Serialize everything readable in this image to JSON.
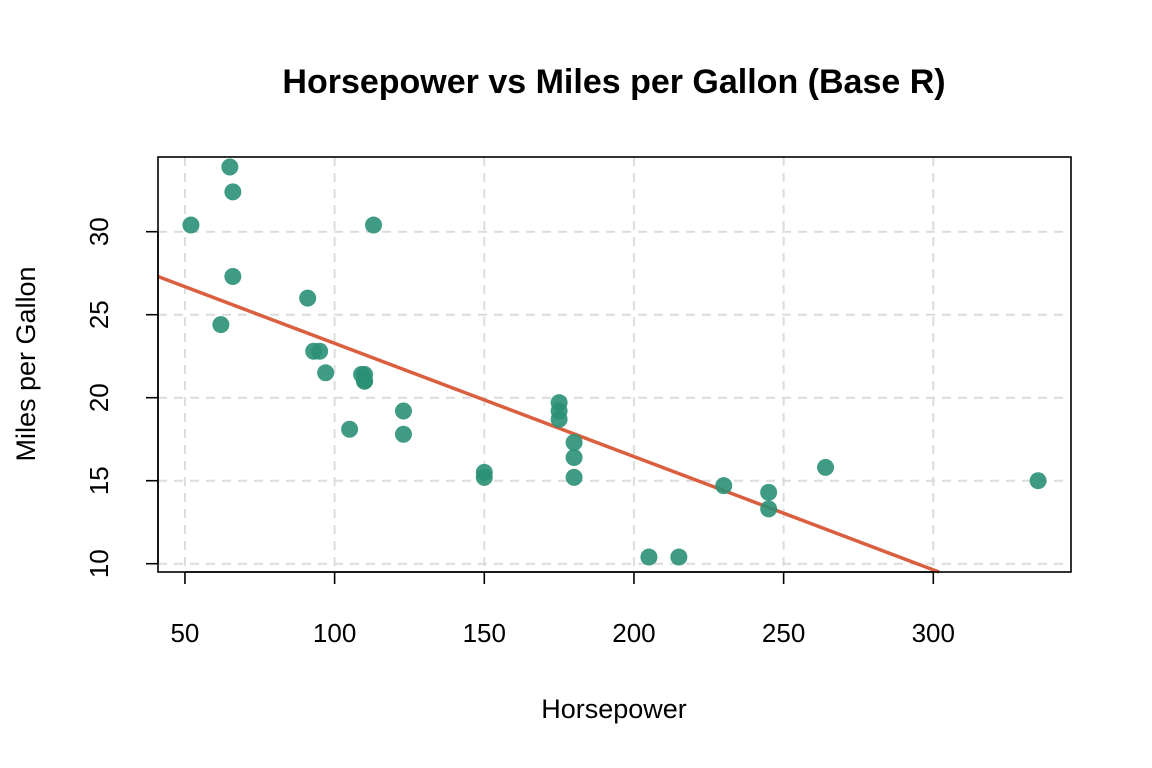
{
  "chart_data": {
    "type": "scatter",
    "title": "Horsepower vs Miles per Gallon (Base R)",
    "xlabel": "Horsepower",
    "ylabel": "Miles per Gallon",
    "xlim": [
      41,
      346
    ],
    "ylim": [
      9.5,
      34.5
    ],
    "x_ticks": [
      50,
      100,
      150,
      200,
      250,
      300
    ],
    "y_ticks": [
      10,
      15,
      20,
      25,
      30
    ],
    "grid": true,
    "point_color": "#2a9076",
    "line_color": "#d95f3f",
    "points": [
      {
        "x": 110,
        "y": 21.0
      },
      {
        "x": 110,
        "y": 21.0
      },
      {
        "x": 93,
        "y": 22.8
      },
      {
        "x": 110,
        "y": 21.4
      },
      {
        "x": 175,
        "y": 18.7
      },
      {
        "x": 105,
        "y": 18.1
      },
      {
        "x": 245,
        "y": 14.3
      },
      {
        "x": 62,
        "y": 24.4
      },
      {
        "x": 95,
        "y": 22.8
      },
      {
        "x": 123,
        "y": 19.2
      },
      {
        "x": 123,
        "y": 17.8
      },
      {
        "x": 180,
        "y": 16.4
      },
      {
        "x": 180,
        "y": 17.3
      },
      {
        "x": 180,
        "y": 15.2
      },
      {
        "x": 205,
        "y": 10.4
      },
      {
        "x": 215,
        "y": 10.4
      },
      {
        "x": 230,
        "y": 14.7
      },
      {
        "x": 66,
        "y": 32.4
      },
      {
        "x": 52,
        "y": 30.4
      },
      {
        "x": 65,
        "y": 33.9
      },
      {
        "x": 97,
        "y": 21.5
      },
      {
        "x": 150,
        "y": 15.5
      },
      {
        "x": 150,
        "y": 15.2
      },
      {
        "x": 245,
        "y": 13.3
      },
      {
        "x": 175,
        "y": 19.2
      },
      {
        "x": 66,
        "y": 27.3
      },
      {
        "x": 91,
        "y": 26.0
      },
      {
        "x": 113,
        "y": 30.4
      },
      {
        "x": 264,
        "y": 15.8
      },
      {
        "x": 175,
        "y": 19.7
      },
      {
        "x": 335,
        "y": 15.0
      },
      {
        "x": 109,
        "y": 21.4
      }
    ],
    "fit": {
      "intercept": 30.0989,
      "slope": -0.06823
    }
  }
}
